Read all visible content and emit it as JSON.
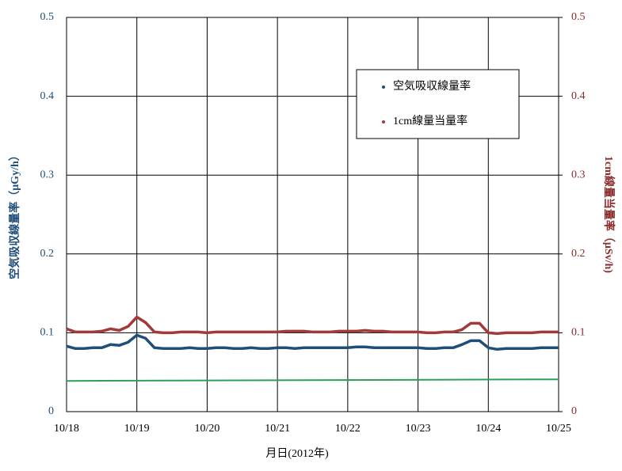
{
  "chart_data": {
    "type": "line",
    "x_label": "月日(2012年)",
    "y_label": "空気吸収線量率（μGy/h）",
    "y2_label": "1cm線量当量率（μSv/h)",
    "xlim": [
      18,
      25
    ],
    "xticks": [
      {
        "value": 18,
        "label": "10/18"
      },
      {
        "value": 19,
        "label": "10/19"
      },
      {
        "value": 20,
        "label": "10/20"
      },
      {
        "value": 21,
        "label": "10/21"
      },
      {
        "value": 22,
        "label": "10/22"
      },
      {
        "value": 23,
        "label": "10/23"
      },
      {
        "value": 24,
        "label": "10/24"
      },
      {
        "value": 25,
        "label": "10/25"
      }
    ],
    "ylim": [
      0,
      0.5
    ],
    "yticks": [
      0,
      0.1,
      0.2,
      0.3,
      0.4,
      0.5
    ],
    "y2lim": [
      0,
      0.5
    ],
    "y2ticks": [
      0,
      0.1,
      0.2,
      0.3,
      0.4,
      0.5
    ],
    "grid": true,
    "legend_position": "upper right",
    "series": [
      {
        "name": "空気吸収線量率",
        "color": "#1f4e79",
        "x": [
          18,
          18.125,
          18.25,
          18.375,
          18.5,
          18.625,
          18.75,
          18.875,
          19,
          19.125,
          19.25,
          19.375,
          19.5,
          19.625,
          19.75,
          19.875,
          20,
          20.125,
          20.25,
          20.375,
          20.5,
          20.625,
          20.75,
          20.875,
          21,
          21.125,
          21.25,
          21.375,
          21.5,
          21.625,
          21.75,
          21.875,
          22,
          22.125,
          22.25,
          22.375,
          22.5,
          22.625,
          22.75,
          22.875,
          23,
          23.125,
          23.25,
          23.375,
          23.5,
          23.625,
          23.75,
          23.875,
          24,
          24.125,
          24.25,
          24.375,
          24.5,
          24.625,
          24.75,
          24.875,
          25
        ],
        "values": [
          0.083,
          0.08,
          0.08,
          0.081,
          0.081,
          0.085,
          0.084,
          0.088,
          0.097,
          0.093,
          0.081,
          0.08,
          0.08,
          0.08,
          0.081,
          0.08,
          0.08,
          0.081,
          0.081,
          0.08,
          0.08,
          0.081,
          0.08,
          0.08,
          0.081,
          0.081,
          0.08,
          0.081,
          0.081,
          0.081,
          0.081,
          0.081,
          0.081,
          0.082,
          0.082,
          0.081,
          0.081,
          0.081,
          0.081,
          0.081,
          0.081,
          0.08,
          0.08,
          0.081,
          0.081,
          0.085,
          0.09,
          0.09,
          0.081,
          0.079,
          0.08,
          0.08,
          0.08,
          0.08,
          0.081,
          0.081,
          0.081
        ]
      },
      {
        "name": "1cm線量当量率",
        "color": "#a33a3a",
        "axis": "y2",
        "x": [
          18,
          18.125,
          18.25,
          18.375,
          18.5,
          18.625,
          18.75,
          18.875,
          19,
          19.125,
          19.25,
          19.375,
          19.5,
          19.625,
          19.75,
          19.875,
          20,
          20.125,
          20.25,
          20.375,
          20.5,
          20.625,
          20.75,
          20.875,
          21,
          21.125,
          21.25,
          21.375,
          21.5,
          21.625,
          21.75,
          21.875,
          22,
          22.125,
          22.25,
          22.375,
          22.5,
          22.625,
          22.75,
          22.875,
          23,
          23.125,
          23.25,
          23.375,
          23.5,
          23.625,
          23.75,
          23.875,
          24,
          24.125,
          24.25,
          24.375,
          24.5,
          24.625,
          24.75,
          24.875,
          25
        ],
        "values": [
          0.105,
          0.101,
          0.101,
          0.101,
          0.102,
          0.105,
          0.103,
          0.108,
          0.12,
          0.113,
          0.101,
          0.1,
          0.1,
          0.101,
          0.101,
          0.101,
          0.1,
          0.101,
          0.101,
          0.101,
          0.101,
          0.101,
          0.101,
          0.101,
          0.101,
          0.102,
          0.102,
          0.102,
          0.101,
          0.101,
          0.101,
          0.102,
          0.102,
          0.102,
          0.103,
          0.102,
          0.102,
          0.101,
          0.101,
          0.101,
          0.101,
          0.1,
          0.1,
          0.101,
          0.101,
          0.104,
          0.112,
          0.112,
          0.1,
          0.099,
          0.1,
          0.1,
          0.1,
          0.1,
          0.101,
          0.101,
          0.101
        ]
      },
      {
        "color": "#2ca05a",
        "x": [
          18,
          25
        ],
        "values": [
          0.039,
          0.041
        ]
      }
    ]
  }
}
